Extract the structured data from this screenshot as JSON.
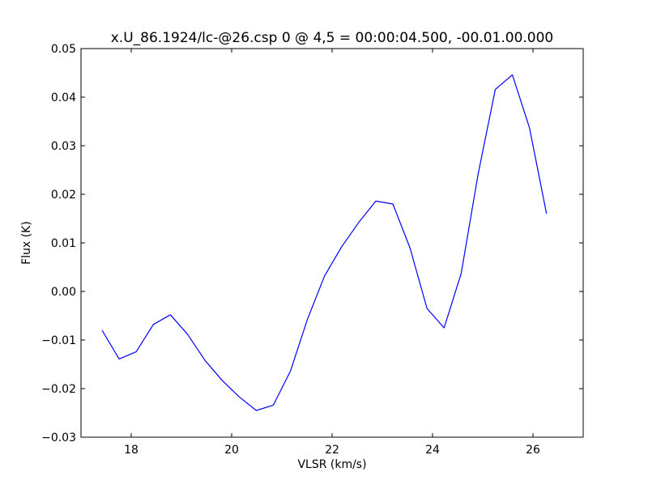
{
  "chart_data": {
    "type": "line",
    "title": "x.U_86.1924/lc-@26.csp 0 @ 4,5 = 00:00:04.500, -00.01.00.000",
    "xlabel": "VLSR (km/s)",
    "ylabel": "Flux (K)",
    "xlim": [
      17,
      27
    ],
    "ylim": [
      -0.03,
      0.05
    ],
    "x_ticks": [
      18,
      20,
      22,
      24,
      26
    ],
    "x_tick_labels": [
      "18",
      "20",
      "22",
      "24",
      "26"
    ],
    "y_ticks": [
      -0.03,
      -0.02,
      -0.01,
      0.0,
      0.01,
      0.02,
      0.03,
      0.04,
      0.05
    ],
    "y_tick_labels": [
      "−0.03",
      "−0.02",
      "−0.01",
      "0.00",
      "0.01",
      "0.02",
      "0.03",
      "0.04",
      "0.05"
    ],
    "grid": false,
    "line_color": "#0000ff",
    "series": [
      {
        "x": [
          17.42,
          17.76,
          18.1,
          18.44,
          18.78,
          19.12,
          19.47,
          19.81,
          20.15,
          20.49,
          20.83,
          21.17,
          21.51,
          21.85,
          22.19,
          22.53,
          22.87,
          23.21,
          23.55,
          23.89,
          24.23,
          24.57,
          24.91,
          25.25,
          25.59,
          25.93,
          26.27
        ],
        "y": [
          -0.008,
          -0.0139,
          -0.0124,
          -0.0068,
          -0.0048,
          -0.0088,
          -0.0142,
          -0.0183,
          -0.0217,
          -0.0245,
          -0.0234,
          -0.0164,
          -0.0057,
          0.0032,
          0.0092,
          0.0142,
          0.0186,
          0.018,
          0.009,
          -0.0035,
          -0.0075,
          0.0037,
          0.0243,
          0.0416,
          0.0446,
          0.0337,
          0.016
        ]
      }
    ]
  }
}
